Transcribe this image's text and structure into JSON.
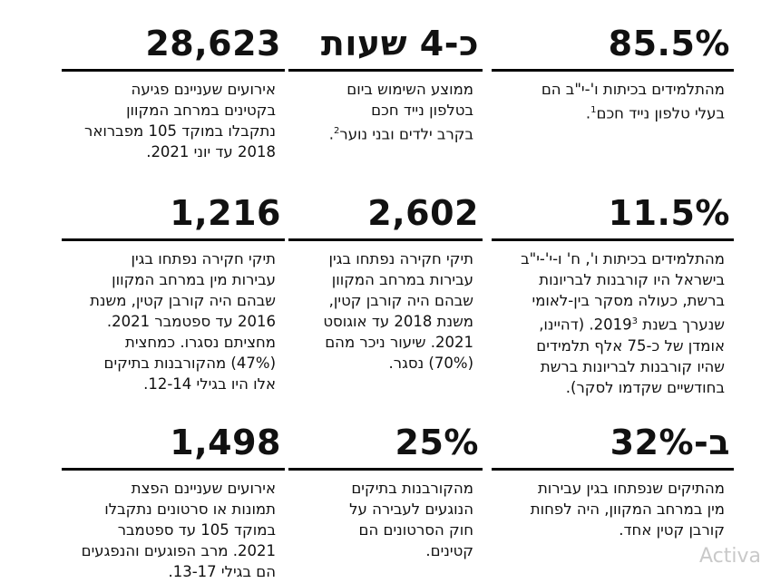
{
  "stats": [
    {
      "value": "85.5%",
      "lines": "מהתלמידים בכיתות ו'-י\"ב הם\nבעלי טלפון נייד חכם",
      "sup": "1",
      "tail": "."
    },
    {
      "value": "כ-4 שעות",
      "lines": "ממוצע השימוש ביום\nבטלפון נייד חכם\nבקרב ילדים ובני נוער",
      "sup": "2",
      "tail": "."
    },
    {
      "value": "28,623",
      "lines": "אירועים שעניינם פגיעה\nבקטינים במרחב המקוון\nנתקבלו במוקד 105 מפברואר\n2018 עד יוני 2021.",
      "sup": "",
      "tail": ""
    },
    {
      "value": "11.5%",
      "lines": "מהתלמידים בכיתות ו', ח' ו-י'-י\"ב\nבישראל היו קורבנות לבריונות\nברשת, כעולה מסקר בין-לאומי\nשנערך בשנת 2019",
      "sup": "3",
      "tail": ". (דהיינו,\nאומדן של כ-75 אלף תלמידים\nשהיו קורבנות לבריונות ברשת\nבחודשיים שקדמו לסקר)."
    },
    {
      "value": "2,602",
      "lines": "תיקי חקירה נפתחו בגין\nעבירות במרחב המקוון\nשבהם היה קורבן קטין,\nמשנת 2018 עד אוגוסט\n2021. שיעור ניכר מהם\n(70%) נסגר.",
      "sup": "",
      "tail": ""
    },
    {
      "value": "1,216",
      "lines": "תיקי חקירה נפתחו בגין\nעבירות מין במרחב המקוון\nשבהם היה קורבן קטין, משנת\n2016 עד ספטמבר 2021.\nמחציתם נסגרו. כמחצית\n(47%) מהקורבנות בתיקים\nאלו היו בגילי 12-14.",
      "sup": "",
      "tail": ""
    },
    {
      "value": "ב-32%",
      "lines": "מהתיקים שנפתחו בגין עבירות\nמין במרחב המקוון, היה לפחות\nקורבן קטין אחד.",
      "sup": "",
      "tail": ""
    },
    {
      "value": "25%",
      "lines": "מהקורבנות בתיקים\nהנוגעים לעבירה על\nחוק הסרטונים הם\nקטינים.",
      "sup": "",
      "tail": ""
    },
    {
      "value": "1,498",
      "lines": "אירועים שעניינם הפצת\nתמונות או סרטונים נתקבלו\nבמוקד 105 עד ספטמבר\n2021. מרב הפוגעים והנפגעים\nהם בגילי 13-17.",
      "sup": "",
      "tail": ""
    }
  ],
  "watermark": "Activa"
}
